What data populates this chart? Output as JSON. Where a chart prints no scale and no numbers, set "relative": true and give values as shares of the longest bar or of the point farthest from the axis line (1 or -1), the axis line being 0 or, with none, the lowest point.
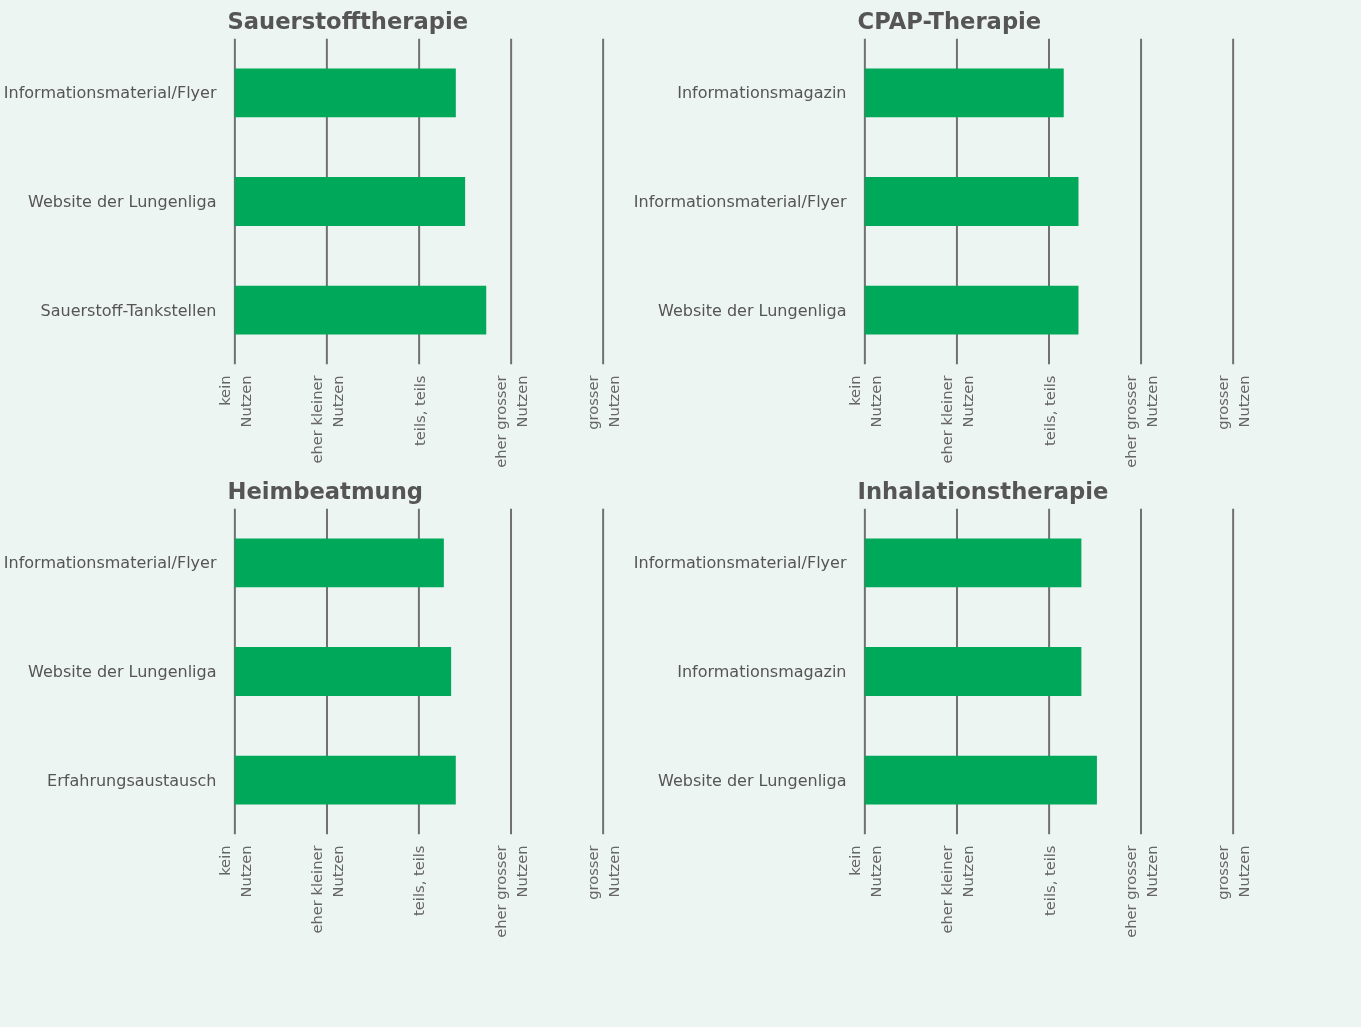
{
  "chart_data": [
    {
      "type": "bar",
      "orientation": "horizontal",
      "relative": true,
      "title": "Sauerstofftherapie",
      "categories": [
        "Informationsmaterial/Flyer",
        "Website der Lungenliga",
        "Sauerstoff-Tankstellen"
      ],
      "values": [
        0.879,
        0.916,
        1
      ],
      "color": "#00a859",
      "ref_lines": [
        {
          "axis": "x",
          "value": 0,
          "label": "kein\nNutzen"
        },
        {
          "axis": "x",
          "value": 0.366,
          "label": "eher kleiner\nNutzen"
        },
        {
          "axis": "x",
          "value": 0.733,
          "label": "teils, teils"
        },
        {
          "axis": "x",
          "value": 1.099,
          "label": "eher grosser\nNutzen"
        },
        {
          "axis": "x",
          "value": 1.465,
          "label": "grosser\nNutzen"
        }
      ]
    },
    {
      "type": "bar",
      "orientation": "horizontal",
      "relative": true,
      "title": "CPAP-Therapie",
      "categories": [
        "Informationsmagazin",
        "Informationsmaterial/Flyer",
        "Website der Lungenliga"
      ],
      "values": [
        0.931,
        1,
        1
      ],
      "color": "#00a859",
      "ref_lines": [
        {
          "axis": "x",
          "value": 0,
          "label": "kein\nNutzen"
        },
        {
          "axis": "x",
          "value": 0.431,
          "label": "eher kleiner\nNutzen"
        },
        {
          "axis": "x",
          "value": 0.862,
          "label": "teils, teils"
        },
        {
          "axis": "x",
          "value": 1.293,
          "label": "eher grosser\nNutzen"
        },
        {
          "axis": "x",
          "value": 1.724,
          "label": "grosser\nNutzen"
        }
      ]
    },
    {
      "type": "bar",
      "orientation": "horizontal",
      "relative": true,
      "title": "Heimbeatmung",
      "categories": [
        "Informationsmaterial/Flyer",
        "Website der Lungenliga",
        "Erfahrungsaustausch"
      ],
      "values": [
        0.946,
        0.979,
        1
      ],
      "color": "#00a859",
      "ref_lines": [
        {
          "axis": "x",
          "value": 0,
          "label": "kein\nNutzen"
        },
        {
          "axis": "x",
          "value": 0.417,
          "label": "eher kleiner\nNutzen"
        },
        {
          "axis": "x",
          "value": 0.833,
          "label": "teils, teils"
        },
        {
          "axis": "x",
          "value": 1.25,
          "label": "eher grosser\nNutzen"
        },
        {
          "axis": "x",
          "value": 1.667,
          "label": "grosser\nNutzen"
        }
      ]
    },
    {
      "type": "bar",
      "orientation": "horizontal",
      "relative": true,
      "title": "Inhalationstherapie",
      "categories": [
        "Informationsmaterial/Flyer",
        "Informationsmagazin",
        "Website der Lungenliga"
      ],
      "values": [
        0.933,
        0.933,
        1
      ],
      "color": "#00a859",
      "ref_lines": [
        {
          "axis": "x",
          "value": 0,
          "label": "kein\nNutzen"
        },
        {
          "axis": "x",
          "value": 0.397,
          "label": "eher kleiner\nNutzen"
        },
        {
          "axis": "x",
          "value": 0.794,
          "label": "teils, teils"
        },
        {
          "axis": "x",
          "value": 1.19,
          "label": "eher grosser\nNutzen"
        },
        {
          "axis": "x",
          "value": 1.587,
          "label": "grosser\nNutzen"
        }
      ]
    }
  ]
}
